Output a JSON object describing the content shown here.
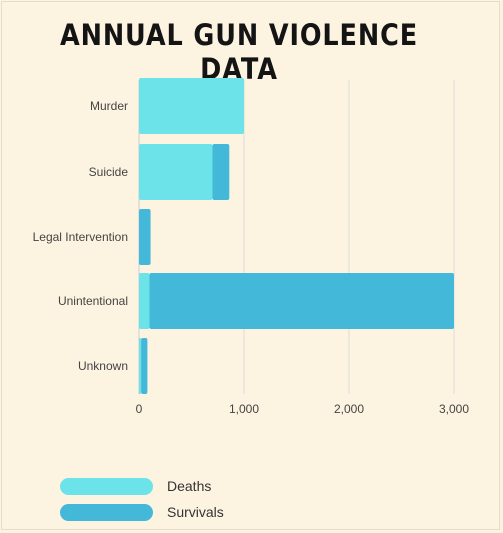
{
  "chart_data": {
    "type": "bar",
    "orientation": "horizontal",
    "stacked": true,
    "title": "ANNUAL GUN VIOLENCE DATA",
    "categories": [
      "Murder",
      "Suicide",
      "Legal Intervention",
      "Unintentional",
      "Unknown"
    ],
    "series": [
      {
        "name": "Deaths",
        "color": "#6be3e8",
        "values": [
          1000,
          700,
          0,
          100,
          20
        ]
      },
      {
        "name": "Survivals",
        "color": "#43b8d8",
        "values": [
          0,
          160,
          110,
          2900,
          60
        ]
      }
    ],
    "xlim": [
      0,
      3000
    ],
    "xticks": [
      "0",
      "1,000",
      "2,000",
      "3,000"
    ],
    "xtick_values": [
      0,
      1000,
      2000,
      3000
    ],
    "grid": true,
    "legend_position": "bottom-left"
  }
}
